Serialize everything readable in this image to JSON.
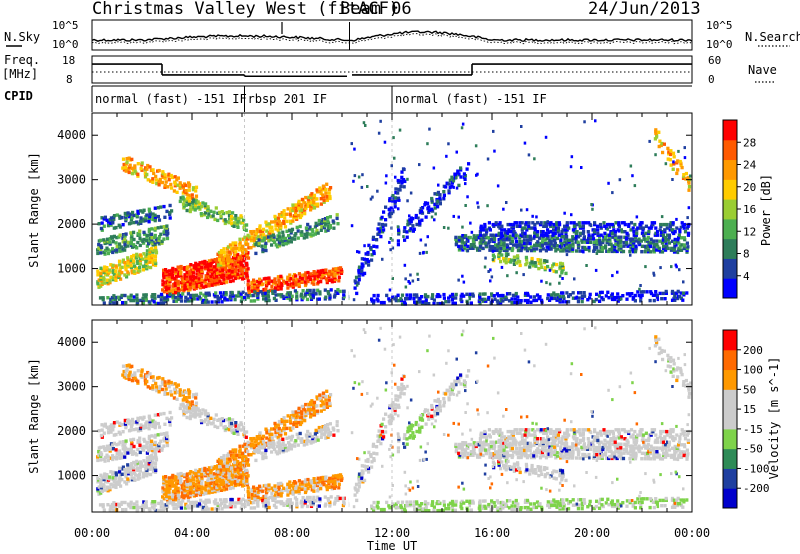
{
  "header": {
    "title": "Christmas Valley West (fitACF)",
    "beam": "Beam 06",
    "date": "24/Jun/2013"
  },
  "strip_labels": {
    "nsky": "N.Sky",
    "nsearch": "N.Search",
    "freq": "Freq.",
    "freq_unit": "[MHz]",
    "nave": "Nave",
    "cpid": "CPID"
  },
  "strip_ticks": {
    "noise_left": [
      "10^5",
      "10^0"
    ],
    "noise_right": [
      "10^5",
      "10^0"
    ],
    "freq_left": [
      "18",
      "8"
    ],
    "nave_right": [
      "60",
      "0"
    ]
  },
  "cpid_segments": [
    {
      "label": "normal (fast) -151 IF",
      "start_hr": 0
    },
    {
      "label": "rbsp 201 IF",
      "start_hr": 6.1
    },
    {
      "label": "normal (fast) -151 IF",
      "start_hr": 12.0
    }
  ],
  "colors": {
    "power_scale": [
      "#0000ff",
      "#1f3fa0",
      "#2e7d5a",
      "#4caf50",
      "#9acd32",
      "#ffcc00",
      "#ff9900",
      "#ff5a00",
      "#ff0000"
    ],
    "velocity_scale": [
      "#ff0000",
      "#ff6a00",
      "#ff9900",
      "#cccccc",
      "#cccccc",
      "#7ed34a",
      "#2e8b57",
      "#1f3fa0",
      "#0000cc"
    ]
  },
  "chart_data": [
    {
      "type": "heatmap",
      "name": "Power",
      "xlabel": "",
      "ylabel": "Slant Range [km]",
      "x_range_hr": [
        0,
        24
      ],
      "ylim": [
        180,
        4500
      ],
      "yticks": [
        "1000",
        "2000",
        "3000",
        "4000"
      ],
      "colorbar": {
        "label": "Power [dB]",
        "ticks": [
          "4",
          "8",
          "12",
          "16",
          "20",
          "24",
          "28"
        ],
        "range": [
          0,
          30
        ]
      }
    },
    {
      "type": "heatmap",
      "name": "Velocity",
      "xlabel": "Time UT",
      "ylabel": "Slant Range [km]",
      "x_range_hr": [
        0,
        24
      ],
      "ylim": [
        180,
        4500
      ],
      "yticks": [
        "1000",
        "2000",
        "3000",
        "4000"
      ],
      "xticks": [
        "00:00",
        "04:00",
        "08:00",
        "12:00",
        "16:00",
        "20:00",
        "00:00"
      ],
      "colorbar": {
        "label": "Velocity [m s^-1]",
        "ticks": [
          "200",
          "100",
          "50",
          "15",
          "-15",
          "-50",
          "-100",
          "-200"
        ]
      }
    }
  ],
  "frequency_trace_mhz": [
    {
      "from_hr": 0,
      "to_hr": 2.8,
      "value": 15
    },
    {
      "from_hr": 2.8,
      "to_hr": 6.1,
      "value": 11
    },
    {
      "from_hr": 6.1,
      "to_hr": 10.2,
      "value": 10.5
    },
    {
      "from_hr": 10.4,
      "to_hr": 15.2,
      "value": 11
    },
    {
      "from_hr": 15.2,
      "to_hr": 24,
      "value": 15
    }
  ]
}
